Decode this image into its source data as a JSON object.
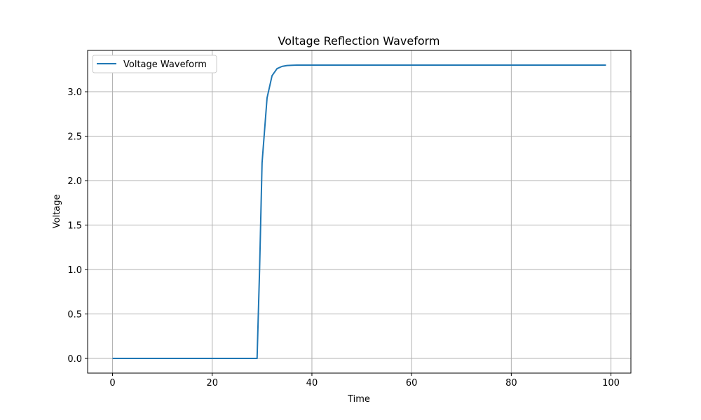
{
  "chart_data": {
    "type": "line",
    "title": "Voltage Reflection Waveform",
    "xlabel": "Time",
    "ylabel": "Voltage",
    "xlim": [
      -5,
      104
    ],
    "ylim": [
      -0.165,
      3.465
    ],
    "xticks": [
      0,
      20,
      40,
      60,
      80,
      100
    ],
    "xtick_labels": [
      "0",
      "20",
      "40",
      "60",
      "80",
      "100"
    ],
    "yticks": [
      0.0,
      0.5,
      1.0,
      1.5,
      2.0,
      2.5,
      3.0
    ],
    "ytick_labels": [
      "0.0",
      "0.5",
      "1.0",
      "1.5",
      "2.0",
      "2.5",
      "3.0"
    ],
    "grid": true,
    "legend": {
      "position": "top-left"
    },
    "series": [
      {
        "name": "Voltage Waveform",
        "color": "#1f77b4",
        "x": [
          0,
          29,
          29.5,
          30,
          31,
          32,
          33,
          34,
          35,
          36,
          37,
          38,
          40,
          50,
          60,
          70,
          80,
          90,
          99
        ],
        "y": [
          0.0,
          0.0,
          1.0,
          2.2,
          2.93,
          3.18,
          3.26,
          3.285,
          3.295,
          3.298,
          3.3,
          3.3,
          3.3,
          3.3,
          3.3,
          3.3,
          3.3,
          3.3,
          3.3
        ]
      }
    ]
  }
}
